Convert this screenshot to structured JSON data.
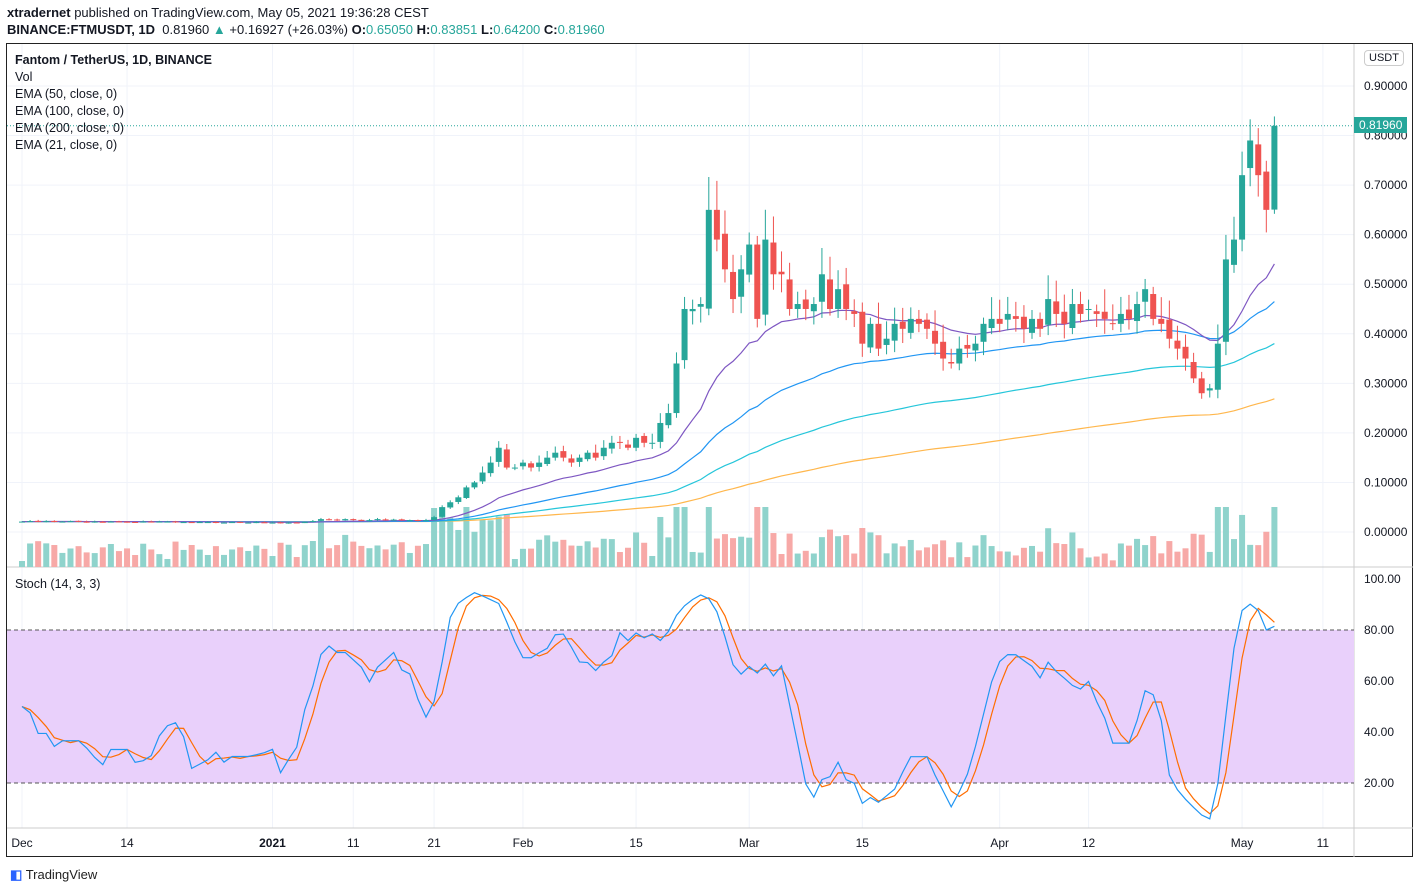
{
  "header": {
    "author": "xtradernet",
    "published": "published on TradingView.com, May 05, 2021 19:36:28 CEST",
    "symbol": "BINANCE:FTMUSDT, 1D",
    "price": "0.81960",
    "change": "+0.16927 (+26.03%)",
    "o_label": "O:",
    "o": "0.65050",
    "h_label": "H:",
    "h": "0.83851",
    "l_label": "L:",
    "l": "0.64200",
    "c_label": "C:",
    "c": "0.81960"
  },
  "legend": {
    "title": "Fantom / TetherUS, 1D, BINANCE",
    "vol": "Vol",
    "ema50": "EMA (50, close, 0)",
    "ema100": "EMA (100, close, 0)",
    "ema200": "EMA (200, close, 0)",
    "ema21": "EMA (21, close, 0)",
    "stoch": "Stoch (14, 3, 3)"
  },
  "price_scale": {
    "currency": "USDT",
    "last": "0.81960"
  },
  "footer": {
    "logo": "TradingView"
  },
  "colors": {
    "up": "#26a69a",
    "down": "#ef5350",
    "ema21": "#7e57c2",
    "ema50": "#2196f3",
    "ema100": "#26c6da",
    "ema200": "#ffb74d",
    "k": "#2196f3",
    "d": "#ff6d00"
  },
  "chart_data": {
    "type": "candlestick",
    "start_date": "2020-12-01",
    "ylim": [
      0,
      0.95
    ],
    "y_ticks": [
      "0.90000",
      "0.80000",
      "0.70000",
      "0.60000",
      "0.50000",
      "0.40000",
      "0.30000",
      "0.20000",
      "0.10000",
      "0.00000"
    ],
    "y_tick_values": [
      0.9,
      0.8,
      0.7,
      0.6,
      0.5,
      0.4,
      0.3,
      0.2,
      0.1,
      0.0
    ],
    "stoch_ticks": [
      "100.00",
      "80.00",
      "60.00",
      "40.00",
      "20.00"
    ],
    "stoch_tick_values": [
      100,
      80,
      60,
      40,
      20
    ],
    "x_ticks": [
      {
        "label": "Dec",
        "day": 0
      },
      {
        "label": "14",
        "day": 13
      },
      {
        "label": "2021",
        "day": 31
      },
      {
        "label": "11",
        "day": 41
      },
      {
        "label": "21",
        "day": 51
      },
      {
        "label": "Feb",
        "day": 62
      },
      {
        "label": "15",
        "day": 76
      },
      {
        "label": "Mar",
        "day": 90
      },
      {
        "label": "15",
        "day": 104
      },
      {
        "label": "Apr",
        "day": 121
      },
      {
        "label": "12",
        "day": 132
      },
      {
        "label": "May",
        "day": 151
      },
      {
        "label": "11",
        "day": 161
      }
    ],
    "closes": [
      0.021,
      0.022,
      0.021,
      0.022,
      0.021,
      0.021,
      0.022,
      0.021,
      0.02,
      0.021,
      0.02,
      0.021,
      0.021,
      0.02,
      0.02,
      0.021,
      0.02,
      0.021,
      0.021,
      0.02,
      0.02,
      0.019,
      0.02,
      0.02,
      0.019,
      0.019,
      0.02,
      0.019,
      0.019,
      0.02,
      0.019,
      0.019,
      0.018,
      0.019,
      0.019,
      0.02,
      0.022,
      0.026,
      0.025,
      0.024,
      0.026,
      0.024,
      0.023,
      0.024,
      0.026,
      0.024,
      0.025,
      0.024,
      0.024,
      0.023,
      0.024,
      0.03,
      0.05,
      0.06,
      0.07,
      0.09,
      0.1,
      0.12,
      0.14,
      0.17,
      0.13,
      0.13,
      0.14,
      0.13,
      0.14,
      0.15,
      0.16,
      0.15,
      0.14,
      0.15,
      0.16,
      0.15,
      0.17,
      0.18,
      0.18,
      0.17,
      0.19,
      0.18,
      0.18,
      0.22,
      0.24,
      0.34,
      0.45,
      0.45,
      0.46,
      0.65,
      0.59,
      0.53,
      0.47,
      0.53,
      0.58,
      0.43,
      0.59,
      0.52,
      0.52,
      0.45,
      0.46,
      0.45,
      0.46,
      0.52,
      0.45,
      0.49,
      0.45,
      0.44,
      0.38,
      0.42,
      0.37,
      0.39,
      0.42,
      0.41,
      0.43,
      0.42,
      0.41,
      0.38,
      0.35,
      0.34,
      0.37,
      0.37,
      0.38,
      0.42,
      0.43,
      0.42,
      0.44,
      0.43,
      0.41,
      0.43,
      0.41,
      0.47,
      0.44,
      0.42,
      0.46,
      0.44,
      0.45,
      0.44,
      0.43,
      0.42,
      0.44,
      0.43,
      0.46,
      0.49,
      0.43,
      0.42,
      0.39,
      0.37,
      0.35,
      0.31,
      0.28,
      0.29,
      0.38,
      0.55,
      0.59,
      0.72,
      0.79,
      0.72,
      0.65,
      0.8196
    ],
    "series": [
      "Candles",
      "Vol",
      "EMA 50",
      "EMA 100",
      "EMA 200",
      "EMA 21",
      "Stoch %K",
      "Stoch %D"
    ]
  }
}
